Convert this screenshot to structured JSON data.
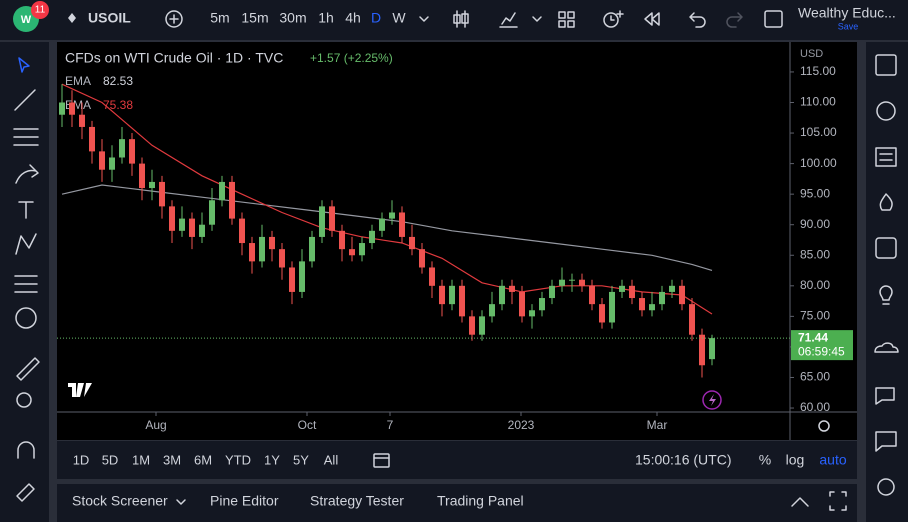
{
  "ui": {
    "badge": "11",
    "symbol": "USOIL",
    "intervals": [
      "5m",
      "15m",
      "30m",
      "1h",
      "4h",
      "D",
      "W"
    ],
    "account": "Wealthy Educ...",
    "save": "Save",
    "ranges": [
      "1D",
      "5D",
      "1M",
      "3M",
      "6M",
      "YTD",
      "1Y",
      "5Y",
      "All"
    ],
    "clock": "15:00:16 (UTC)",
    "scale_options": [
      "%",
      "log",
      "auto"
    ],
    "tabs": [
      "Stock Screener",
      "Pine Editor",
      "Strategy Tester",
      "Trading Panel"
    ]
  },
  "chart_data": {
    "type": "candlestick",
    "title": "CFDs on WTI Crude Oil · 1D · TVC",
    "change": "+1.57 (+2.25%)",
    "currency": "USD",
    "countdown": "06:59:45",
    "up_color": "#66bb6a",
    "down_color": "#ef5350",
    "open": [
      108,
      110,
      108,
      106,
      102,
      99,
      101,
      104,
      100,
      96,
      97,
      93,
      89,
      91,
      88,
      90,
      94,
      97,
      91,
      87,
      84,
      88,
      86,
      83,
      79,
      84,
      88,
      93,
      89,
      86,
      85,
      87,
      89,
      91,
      92,
      88,
      86,
      83,
      80,
      77,
      80,
      75,
      72,
      75,
      77,
      80,
      79,
      75,
      76,
      78,
      80,
      81,
      81,
      80,
      77,
      74,
      79,
      80,
      78,
      76,
      77,
      79,
      80,
      77,
      72,
      68
    ],
    "high": [
      113,
      112,
      110,
      107,
      104,
      103,
      106,
      105,
      101,
      99,
      98,
      94,
      93,
      92,
      92,
      96,
      98,
      98,
      92,
      88,
      90,
      89,
      87,
      84,
      86,
      89,
      94,
      94,
      90,
      88,
      88,
      90,
      92,
      94,
      93,
      90,
      87,
      84,
      81,
      81,
      81,
      76,
      76,
      79,
      81,
      81,
      80,
      77,
      79,
      81,
      83,
      82,
      82,
      81,
      78,
      80,
      81,
      81,
      79,
      79,
      80,
      81,
      81,
      78,
      73,
      72
    ],
    "low": [
      106,
      106,
      104,
      100,
      97,
      97,
      100,
      98,
      94,
      94,
      91,
      87,
      88,
      86,
      87,
      89,
      93,
      90,
      85,
      82,
      83,
      84,
      81,
      77,
      78,
      83,
      87,
      88,
      84,
      84,
      84,
      86,
      88,
      90,
      87,
      85,
      82,
      78,
      75,
      76,
      74,
      71,
      71,
      74,
      76,
      77,
      74,
      73,
      75,
      77,
      79,
      79,
      79,
      76,
      73,
      73,
      78,
      77,
      75,
      75,
      76,
      78,
      76,
      71,
      65,
      67
    ],
    "close": [
      110,
      108,
      106,
      102,
      99,
      101,
      104,
      100,
      96,
      97,
      93,
      89,
      91,
      88,
      90,
      94,
      97,
      91,
      87,
      84,
      88,
      86,
      83,
      79,
      84,
      88,
      93,
      89,
      86,
      85,
      87,
      89,
      91,
      92,
      88,
      86,
      83,
      80,
      77,
      80,
      75,
      72,
      75,
      77,
      80,
      79,
      75,
      76,
      78,
      80,
      81,
      81,
      80,
      77,
      74,
      79,
      80,
      78,
      76,
      77,
      79,
      80,
      77,
      72,
      67,
      71.44
    ],
    "series": [
      {
        "name": "EMA",
        "color": "#9598a1",
        "x": [
          0,
          4,
          9,
          14,
          19,
          24,
          29,
          34,
          39,
          44,
          49,
          54,
          59,
          63,
          65
        ],
        "values": [
          95,
          96.5,
          95.5,
          94.5,
          93.5,
          92.5,
          91.5,
          90.5,
          89,
          88,
          87,
          86,
          85,
          83.5,
          82.53
        ]
      },
      {
        "name": "EMA",
        "color": "#e03a3e",
        "x": [
          0,
          4,
          9,
          14,
          18,
          22,
          26,
          30,
          34,
          38,
          42,
          46,
          50,
          54,
          58,
          62,
          65
        ],
        "values": [
          113,
          110,
          103,
          98,
          95,
          92,
          89.5,
          88,
          87,
          84.5,
          80.5,
          79,
          80,
          80,
          79,
          78.5,
          75.38
        ]
      }
    ],
    "xlim": [
      -0.5,
      72.8
    ],
    "xticks": [
      {
        "value": 9.4,
        "label": "Aug"
      },
      {
        "value": 24.5,
        "label": "Oct"
      },
      {
        "value": 32.8,
        "label": "7"
      },
      {
        "value": 45.9,
        "label": "2023"
      },
      {
        "value": 59.5,
        "label": "Mar"
      }
    ],
    "ylim": [
      59.35,
      119.9
    ],
    "yticks": [
      {
        "value": 60,
        "label": "60.00"
      },
      {
        "value": 65,
        "label": "65.00"
      },
      {
        "value": 70,
        "label": "70.00"
      },
      {
        "value": 75,
        "label": "75.00"
      },
      {
        "value": 80,
        "label": "80.00"
      },
      {
        "value": 85,
        "label": "85.00"
      },
      {
        "value": 90,
        "label": "90.00"
      },
      {
        "value": 95,
        "label": "95.00"
      },
      {
        "value": 100,
        "label": "100.00"
      },
      {
        "value": 105,
        "label": "105.00"
      },
      {
        "value": 110,
        "label": "110.00"
      },
      {
        "value": 115,
        "label": "115.00"
      }
    ]
  }
}
